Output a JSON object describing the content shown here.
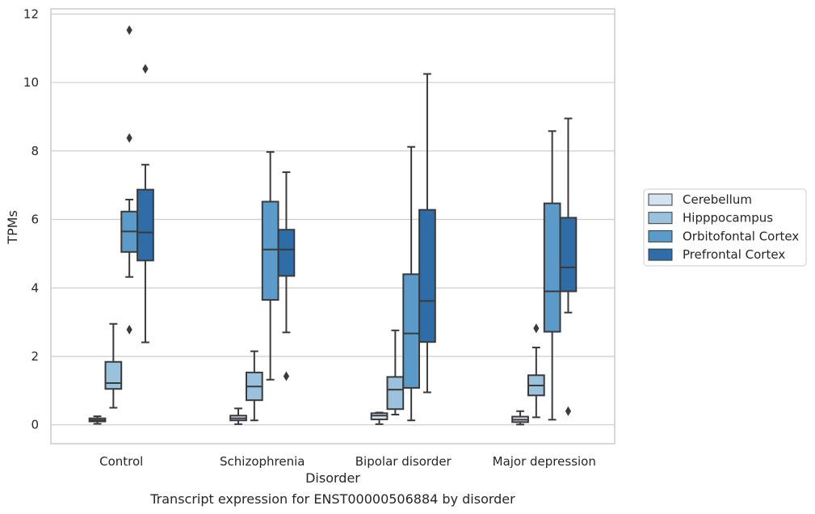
{
  "chart_data": {
    "type": "boxplot",
    "caption": "Transcript expression for ENST00000506884 by disorder",
    "xlabel": "Disorder",
    "ylabel": "TPMs",
    "ylim": [
      -0.55,
      12.15
    ],
    "yticks": [
      0,
      2,
      4,
      6,
      8,
      10,
      12
    ],
    "grid": "horizontal",
    "legend_position": "right",
    "categories": [
      "Control",
      "Schizophrenia",
      "Bipolar disorder",
      "Major depression"
    ],
    "series": [
      {
        "name": "Cerebellum",
        "color": "#d5e2f0",
        "boxes": [
          {
            "low": 0.03,
            "q1": 0.1,
            "median": 0.14,
            "q3": 0.19,
            "high": 0.25,
            "outliers": []
          },
          {
            "low": 0.02,
            "q1": 0.13,
            "median": 0.19,
            "q3": 0.27,
            "high": 0.48,
            "outliers": []
          },
          {
            "low": 0.02,
            "q1": 0.16,
            "median": 0.27,
            "q3": 0.34,
            "high": 0.36,
            "outliers": []
          },
          {
            "low": 0.01,
            "q1": 0.08,
            "median": 0.15,
            "q3": 0.24,
            "high": 0.4,
            "outliers": []
          }
        ]
      },
      {
        "name": "Hipppocampus",
        "color": "#9ac2dc",
        "boxes": [
          {
            "low": 0.5,
            "q1": 1.05,
            "median": 1.22,
            "q3": 1.84,
            "high": 2.95,
            "outliers": []
          },
          {
            "low": 0.13,
            "q1": 0.72,
            "median": 1.12,
            "q3": 1.53,
            "high": 2.15,
            "outliers": []
          },
          {
            "low": 0.3,
            "q1": 0.46,
            "median": 1.03,
            "q3": 1.4,
            "high": 2.76,
            "outliers": []
          },
          {
            "low": 0.22,
            "q1": 0.86,
            "median": 1.15,
            "q3": 1.45,
            "high": 2.26,
            "outliers": [
              2.82
            ]
          }
        ]
      },
      {
        "name": "Orbitofontal Cortex",
        "color": "#5a9bc9",
        "boxes": [
          {
            "low": 4.32,
            "q1": 5.05,
            "median": 5.65,
            "q3": 6.23,
            "high": 6.58,
            "outliers": [
              2.78,
              8.38,
              11.53
            ]
          },
          {
            "low": 1.32,
            "q1": 3.65,
            "median": 5.12,
            "q3": 6.52,
            "high": 7.97,
            "outliers": []
          },
          {
            "low": 0.13,
            "q1": 1.08,
            "median": 2.67,
            "q3": 4.4,
            "high": 8.12,
            "outliers": []
          },
          {
            "low": 0.15,
            "q1": 2.72,
            "median": 3.9,
            "q3": 6.47,
            "high": 8.58,
            "outliers": []
          }
        ]
      },
      {
        "name": "Prefrontal Cortex",
        "color": "#2f6da8",
        "boxes": [
          {
            "low": 2.41,
            "q1": 4.8,
            "median": 5.62,
            "q3": 6.87,
            "high": 7.6,
            "outliers": [
              10.4
            ]
          },
          {
            "low": 2.7,
            "q1": 4.35,
            "median": 5.12,
            "q3": 5.7,
            "high": 7.38,
            "outliers": [
              1.42
            ]
          },
          {
            "low": 0.95,
            "q1": 2.42,
            "median": 3.62,
            "q3": 6.28,
            "high": 10.25,
            "outliers": []
          },
          {
            "low": 3.28,
            "q1": 3.9,
            "median": 4.6,
            "q3": 6.05,
            "high": 8.95,
            "outliers": [
              0.4
            ]
          }
        ]
      }
    ]
  }
}
